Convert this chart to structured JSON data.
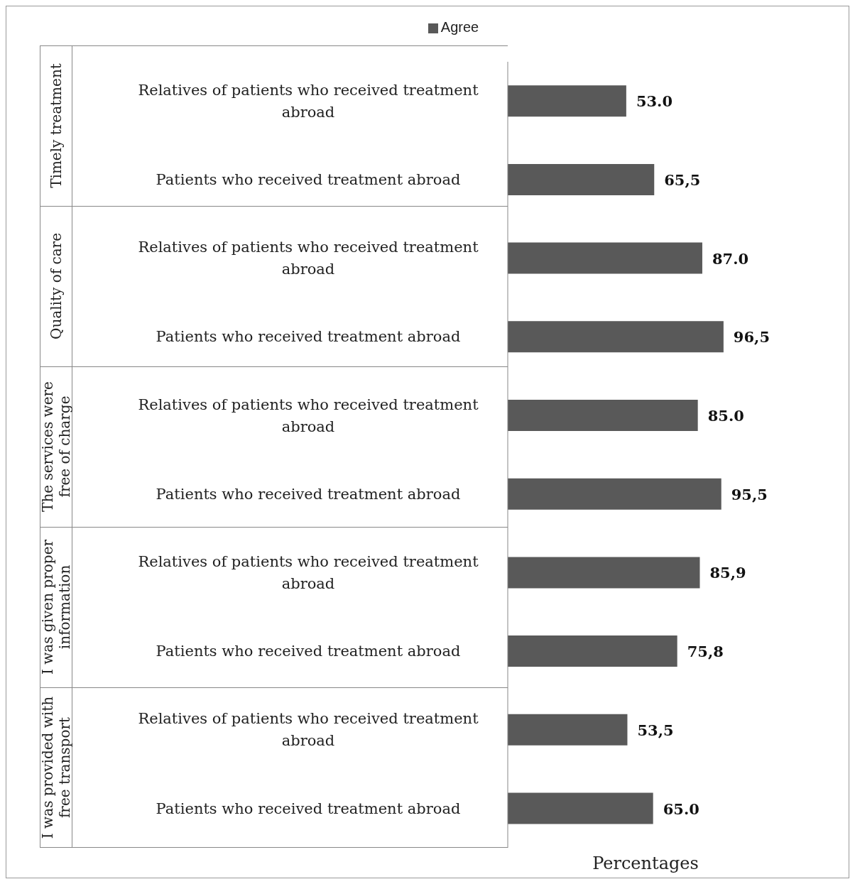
{
  "chart_data": {
    "type": "bar",
    "orientation": "horizontal",
    "xlabel": "Percentages",
    "legend": "top",
    "categories": [
      "Relatives of patients who received treatment abroad",
      "Patients who received treatment abroad",
      "Relatives of patients who received treatment abroad",
      "Patients who received treatment abroad",
      "Relatives of patients who received treatment abroad",
      "Patients who received treatment abroad",
      "Relatives of patients who received treatment abroad",
      "Patients who received treatment abroad",
      "Relatives of patients who received treatment abroad",
      "Patients who received treatment abroad"
    ],
    "annotations": [
      "Timely treatment",
      "Quality of care",
      "The services were free of charge",
      "I was given proper information",
      "I was provided with free transport"
    ],
    "series": [
      {
        "name": "Agree",
        "color": "#595959",
        "values": [
          53.0,
          65.5,
          87.0,
          96.5,
          85.0,
          95.5,
          85.9,
          75.8,
          53.5,
          65.0
        ],
        "value_labels": [
          "53.0",
          "65,5",
          "87.0",
          "96,5",
          "85.0",
          "95,5",
          "85,9",
          "75,8",
          "53,5",
          "65.0"
        ]
      }
    ]
  }
}
